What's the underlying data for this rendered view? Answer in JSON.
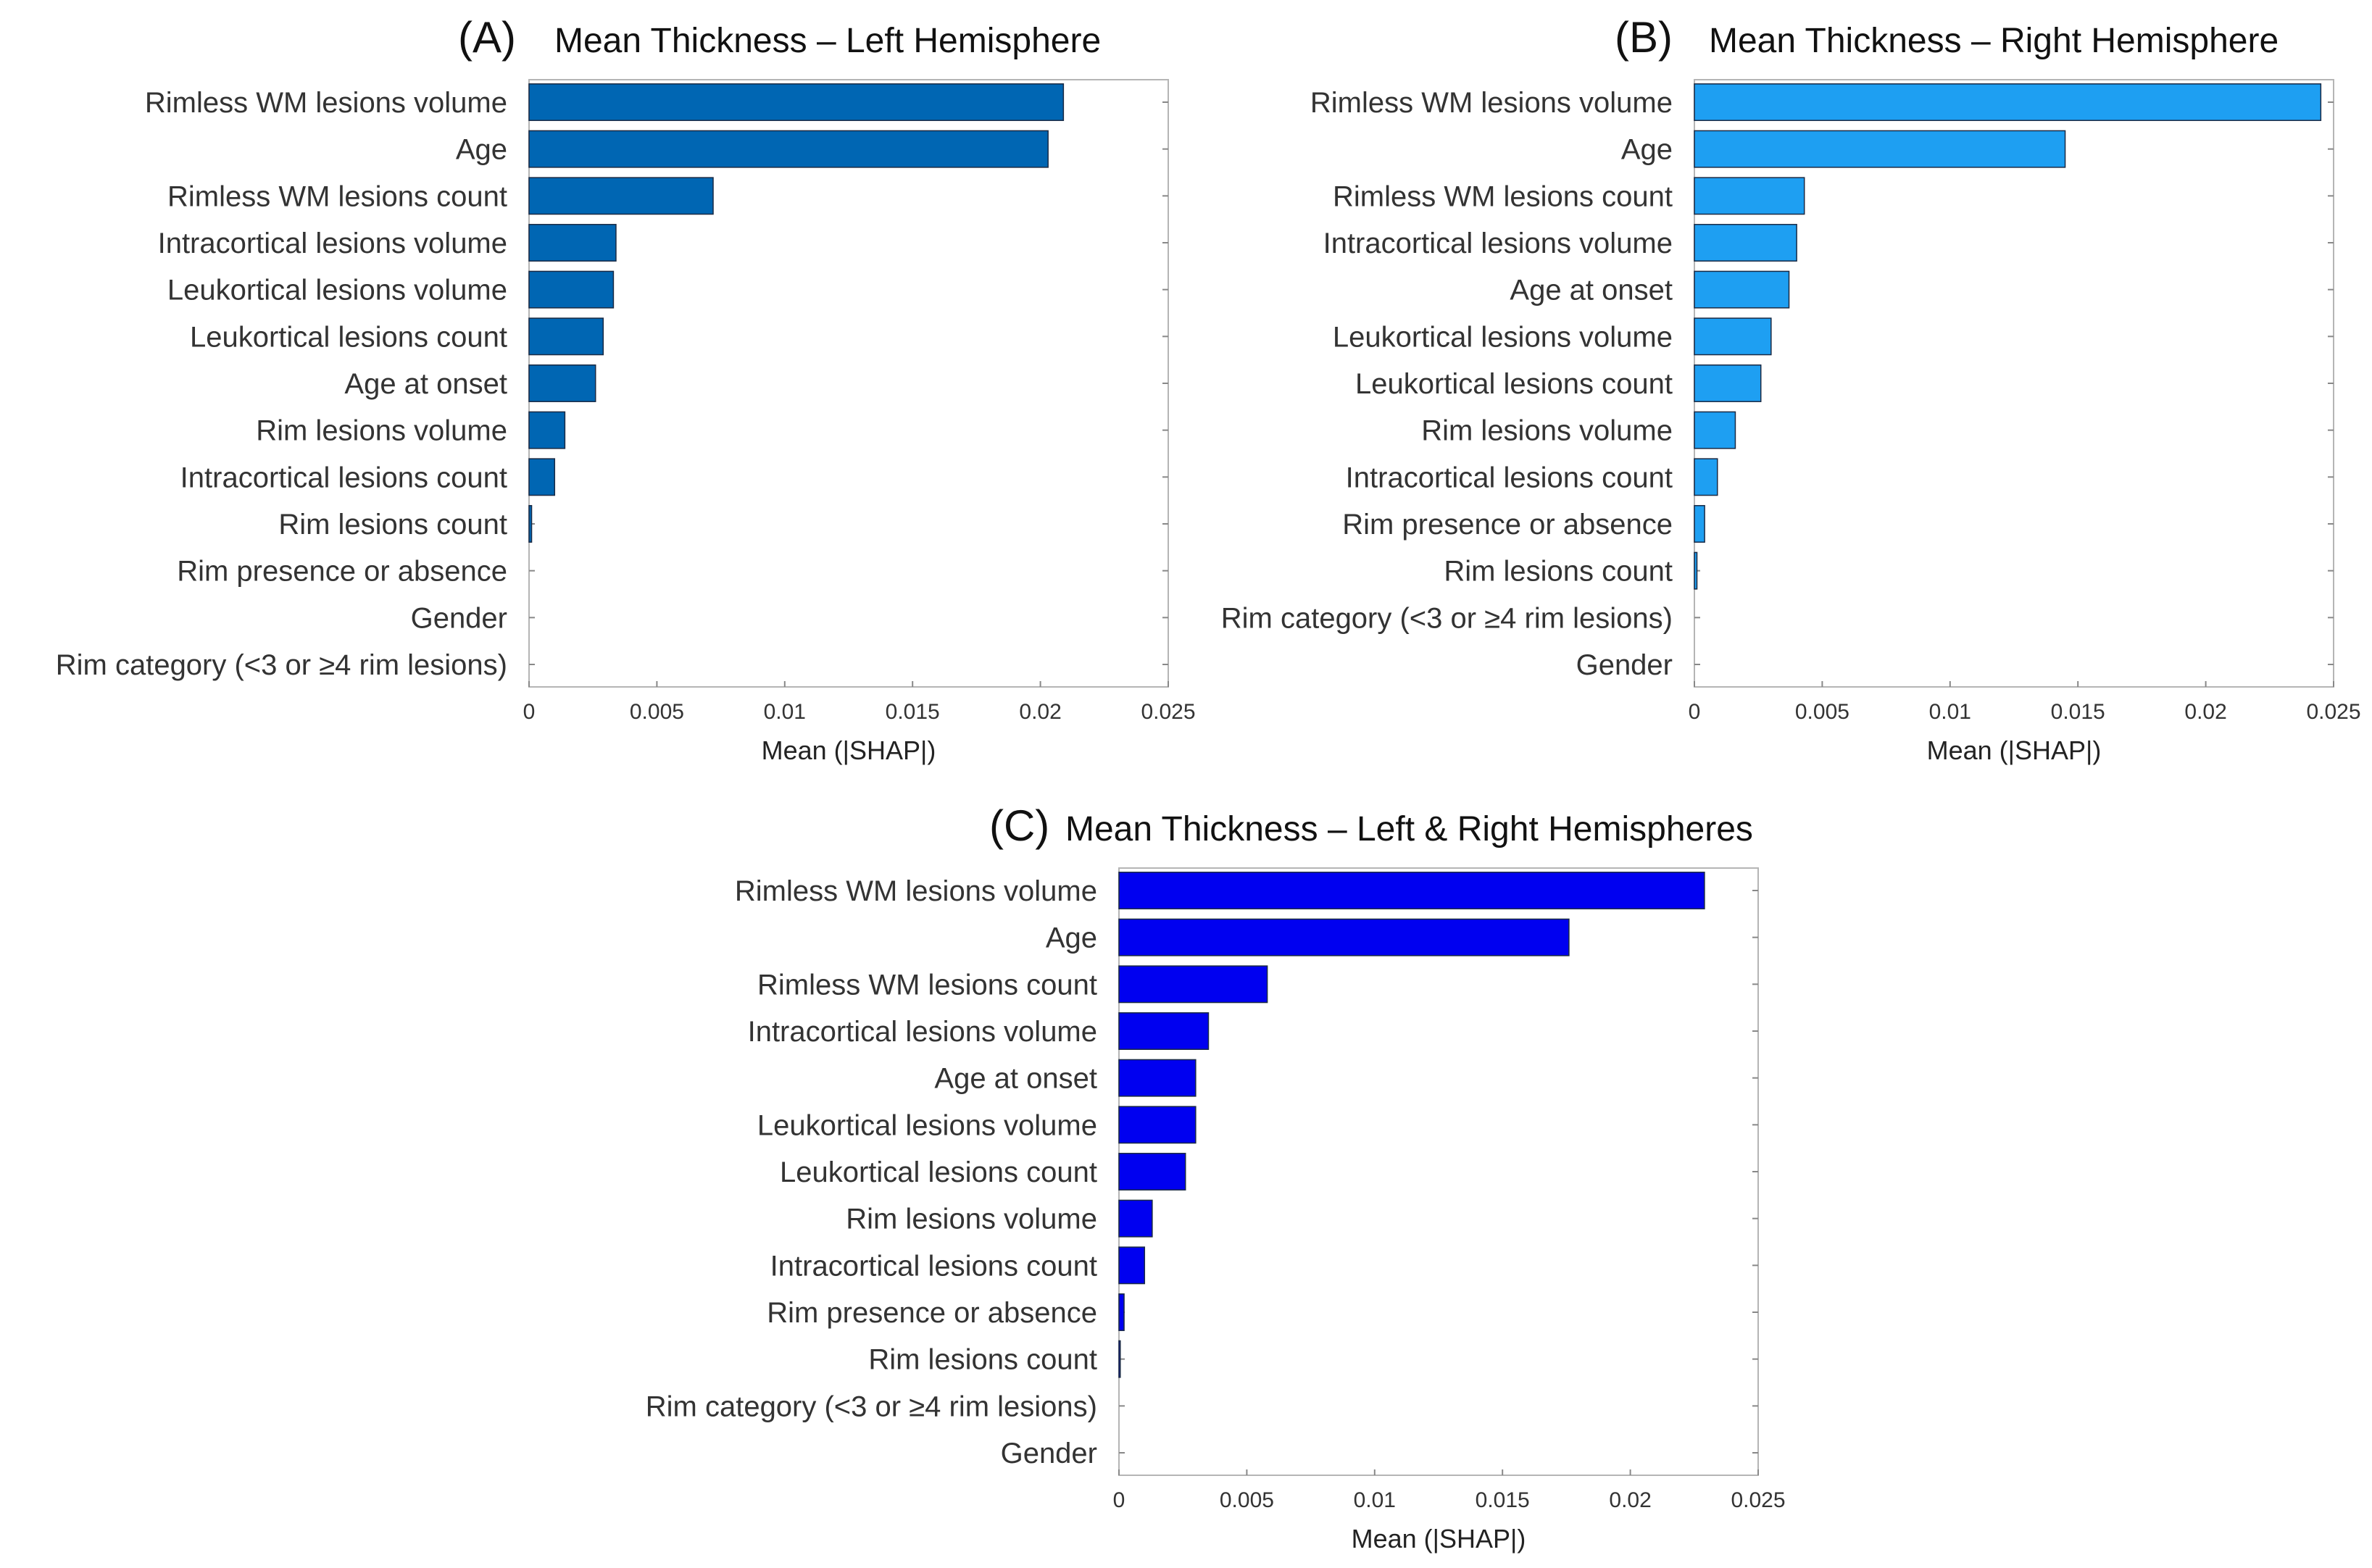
{
  "chart_data": [
    {
      "type": "bar",
      "orientation": "horizontal",
      "panel": "(A)",
      "title": "Mean Thickness – Left Hemisphere",
      "xlabel": "Mean (|SHAP|)",
      "ylabel": "",
      "xlim": [
        0,
        0.025
      ],
      "xticks": [
        "0",
        "0.005",
        "0.01",
        "0.015",
        "0.02",
        "0.025"
      ],
      "bar_color": "#0066b3",
      "categories": [
        "Rimless WM lesions volume",
        "Age",
        "Rimless WM lesions count",
        "Intracortical lesions volume",
        "Leukortical lesions volume",
        "Leukortical lesions count",
        "Age at onset",
        "Rim lesions volume",
        "Intracortical lesions count",
        "Rim lesions count",
        "Rim presence or absence",
        "Gender",
        "Rim category (<3 or ≥4 rim lesions)"
      ],
      "values": [
        0.0209,
        0.0203,
        0.0072,
        0.0034,
        0.0033,
        0.0029,
        0.0026,
        0.0014,
        0.001,
        0.0001,
        0,
        0,
        0
      ]
    },
    {
      "type": "bar",
      "orientation": "horizontal",
      "panel": "(B)",
      "title": "Mean Thickness – Right Hemisphere",
      "xlabel": "Mean (|SHAP|)",
      "ylabel": "",
      "xlim": [
        0,
        0.025
      ],
      "xticks": [
        "0",
        "0.005",
        "0.01",
        "0.015",
        "0.02",
        "0.025"
      ],
      "bar_color": "#1e9ff2",
      "categories": [
        "Rimless WM lesions volume",
        "Age",
        "Rimless WM lesions count",
        "Intracortical lesions volume",
        "Age at onset",
        "Leukortical lesions volume",
        "Leukortical lesions count",
        "Rim lesions volume",
        "Intracortical lesions count",
        "Rim presence or absence",
        "Rim lesions count",
        "Rim category (<3 or ≥4 rim lesions)",
        "Gender"
      ],
      "values": [
        0.0245,
        0.0145,
        0.0043,
        0.004,
        0.0037,
        0.003,
        0.0026,
        0.0016,
        0.0009,
        0.0004,
        0.0001,
        0,
        0
      ]
    },
    {
      "type": "bar",
      "orientation": "horizontal",
      "panel": "(C)",
      "title": "Mean Thickness – Left & Right Hemispheres",
      "xlabel": "Mean (|SHAP|)",
      "ylabel": "",
      "xlim": [
        0,
        0.025
      ],
      "xticks": [
        "0",
        "0.005",
        "0.01",
        "0.015",
        "0.02",
        "0.025"
      ],
      "bar_color": "#0000f0",
      "categories": [
        "Rimless WM lesions volume",
        "Age",
        "Rimless WM lesions count",
        "Intracortical lesions volume",
        "Age at onset",
        "Leukortical lesions volume",
        "Leukortical lesions count",
        "Rim lesions volume",
        "Intracortical lesions count",
        "Rim presence or absence",
        "Rim lesions count",
        "Rim category (<3 or ≥4 rim lesions)",
        "Gender"
      ],
      "values": [
        0.0229,
        0.0176,
        0.0058,
        0.0035,
        0.003,
        0.003,
        0.0026,
        0.0013,
        0.001,
        0.0002,
        5e-05,
        0,
        0
      ]
    }
  ]
}
